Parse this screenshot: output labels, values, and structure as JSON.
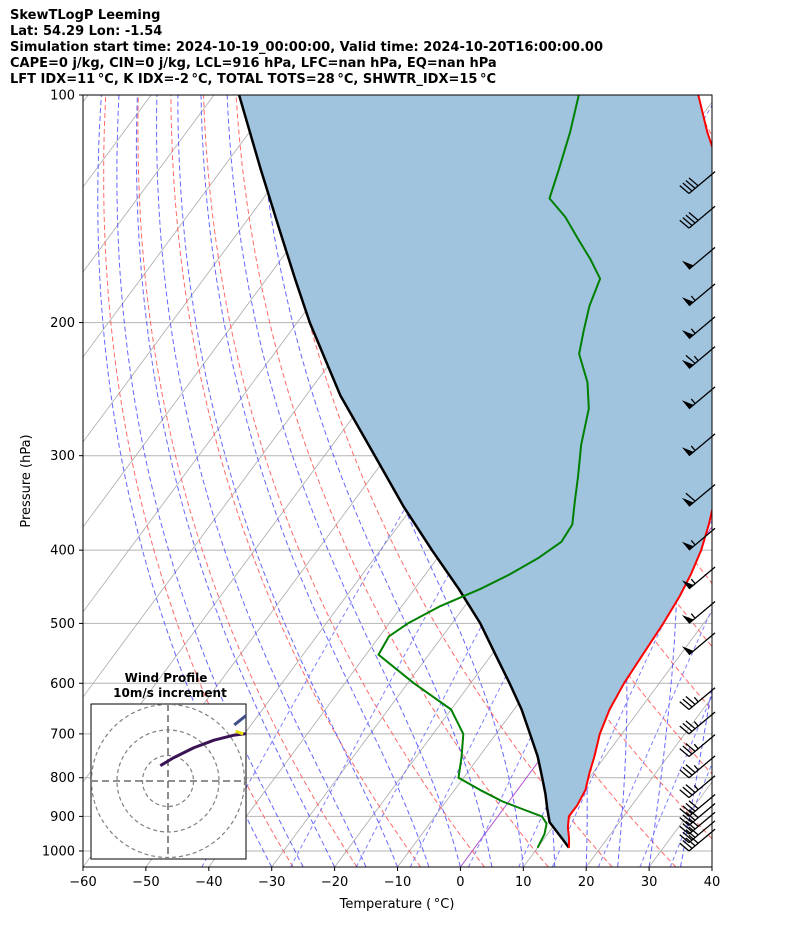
{
  "header": {
    "lines": [
      "SkewTLogP Leeming",
      "Lat: 54.29   Lon: -1.54",
      "Simulation start time: 2024-10-19_00:00:00, Valid time: 2024-10-20T16:00:00.00",
      "CAPE=0 j/kg, CIN=0 j/kg, LCL=916 hPa, LFC=nan hPa, EQ=nan hPa",
      "LFT IDX=11 °C, K IDX=-2 °C, TOTAL TOTS=28 °C, SHWTR_IDX=15 °C"
    ]
  },
  "chart_data": {
    "type": "line",
    "xlabel": "Temperature ( °C)",
    "ylabel": "Pressure (hPa)",
    "xlim": [
      -60,
      40
    ],
    "ylim": [
      1050,
      100
    ],
    "yscale": "log",
    "x_ticks": [
      -60,
      -50,
      -40,
      -30,
      -20,
      -10,
      0,
      10,
      20,
      30,
      40
    ],
    "x_tick_labels": [
      "−60",
      "−50",
      "−40",
      "−30",
      "−20",
      "−10",
      "0",
      "10",
      "20",
      "30",
      "40"
    ],
    "y_ticks": [
      1000,
      900,
      800,
      700,
      600,
      500,
      400,
      300,
      200,
      100
    ],
    "y_tick_labels": [
      "1000",
      "900",
      "800",
      "700",
      "600",
      "500",
      "400",
      "300",
      "200",
      "100"
    ],
    "grid": true,
    "colors": {
      "temperature": "#ff0000",
      "dewpoint": "#008000",
      "parcel": "#000000",
      "fill": "#a0c4de",
      "dry_adiabat": "#ff5a5a",
      "moist_adiabat": "#4040ff",
      "mixing_ratio": "#7070ff",
      "isotherm": "#aaaaaa",
      "zero_line": "#b050d0"
    },
    "series": [
      {
        "key": "temperature",
        "p": [
          990,
          960,
          930,
          900,
          870,
          830,
          790,
          750,
          700,
          650,
          600,
          550,
          500,
          460,
          430,
          400,
          370,
          330,
          300,
          270,
          250,
          235,
          220,
          200,
          185,
          170,
          155,
          140,
          125,
          112,
          100
        ],
        "temp": [
          15,
          13.8,
          12.4,
          11.3,
          11.3,
          10.8,
          9.5,
          8.3,
          6.5,
          5.2,
          4.4,
          4.0,
          3.6,
          3.0,
          2.2,
          1.0,
          -0.8,
          -3.8,
          -6.6,
          -10.2,
          -12.8,
          -15.2,
          -18.8,
          -22.0,
          -24.8,
          -27.8,
          -32.0,
          -36.0,
          -41.0,
          -47.2,
          -53.0
        ]
      },
      {
        "key": "dewpoint",
        "p": [
          990,
          950,
          920,
          900,
          880,
          860,
          830,
          800,
          750,
          700,
          650,
          600,
          550,
          520,
          500,
          475,
          450,
          430,
          410,
          390,
          370,
          345,
          320,
          290,
          260,
          240,
          220,
          205,
          190,
          175,
          165,
          155,
          145,
          137,
          125,
          112,
          100
        ],
        "temp": [
          10.0,
          9.5,
          8.6,
          7.0,
          3.0,
          -1.0,
          -6.0,
          -10.8,
          -12.8,
          -15.2,
          -20.0,
          -29.0,
          -38.0,
          -38.5,
          -37.0,
          -34.0,
          -29.5,
          -26.5,
          -24.0,
          -22.2,
          -22.5,
          -24.8,
          -27.2,
          -30.5,
          -33.5,
          -36.8,
          -41.5,
          -43.5,
          -45.5,
          -47.0,
          -50.8,
          -55.2,
          -59.8,
          -64.5,
          -66.5,
          -69.0,
          -72.0
        ]
      },
      {
        "key": "parcel",
        "p": [
          990,
          960,
          916,
          880,
          840,
          800,
          750,
          700,
          650,
          600,
          550,
          500,
          450,
          400,
          350,
          300,
          250,
          200,
          175,
          150,
          125,
          100
        ],
        "temp": [
          15.0,
          12.6,
          8.9,
          7.0,
          4.9,
          2.5,
          -0.7,
          -4.6,
          -8.8,
          -13.8,
          -19.4,
          -25.5,
          -33.0,
          -41.8,
          -51.5,
          -62.0,
          -74.5,
          -88.0,
          -95.5,
          -104.0,
          -114.0,
          -126.0
        ]
      }
    ],
    "wind_barbs": [
      {
        "p": 1000,
        "kt": 40
      },
      {
        "p": 975,
        "kt": 40
      },
      {
        "p": 950,
        "kt": 40
      },
      {
        "p": 925,
        "kt": 40
      },
      {
        "p": 900,
        "kt": 40
      },
      {
        "p": 850,
        "kt": 35
      },
      {
        "p": 800,
        "kt": 35
      },
      {
        "p": 750,
        "kt": 35
      },
      {
        "p": 700,
        "kt": 35
      },
      {
        "p": 650,
        "kt": 35
      },
      {
        "p": 550,
        "kt": 50
      },
      {
        "p": 500,
        "kt": 55
      },
      {
        "p": 450,
        "kt": 55
      },
      {
        "p": 400,
        "kt": 55
      },
      {
        "p": 350,
        "kt": 60
      },
      {
        "p": 300,
        "kt": 55
      },
      {
        "p": 260,
        "kt": 55
      },
      {
        "p": 230,
        "kt": 65
      },
      {
        "p": 210,
        "kt": 55
      },
      {
        "p": 190,
        "kt": 55
      },
      {
        "p": 170,
        "kt": 50
      },
      {
        "p": 150,
        "kt": 40
      },
      {
        "p": 135,
        "kt": 40
      }
    ],
    "hodograph": {
      "title": "Wind Profile",
      "subtitle": "10m/s increment",
      "rings": [
        1,
        2,
        3
      ],
      "u": [
        -0.3,
        0.2,
        1.0,
        1.8,
        2.6,
        3.4,
        4.0,
        4.6,
        5.0,
        5.6,
        6.0,
        6.2,
        6.2
      ],
      "v": [
        0.6,
        0.9,
        1.3,
        1.6,
        1.8,
        1.9,
        1.9,
        1.8,
        1.9,
        2.1,
        2.5,
        2.8,
        3.1
      ],
      "u_outer": [
        2.6,
        3.1
      ],
      "v_outer": [
        2.2,
        2.6
      ],
      "u_yellow": [
        2.65,
        2.95
      ],
      "v_yellow": [
        1.95,
        1.85
      ]
    }
  }
}
